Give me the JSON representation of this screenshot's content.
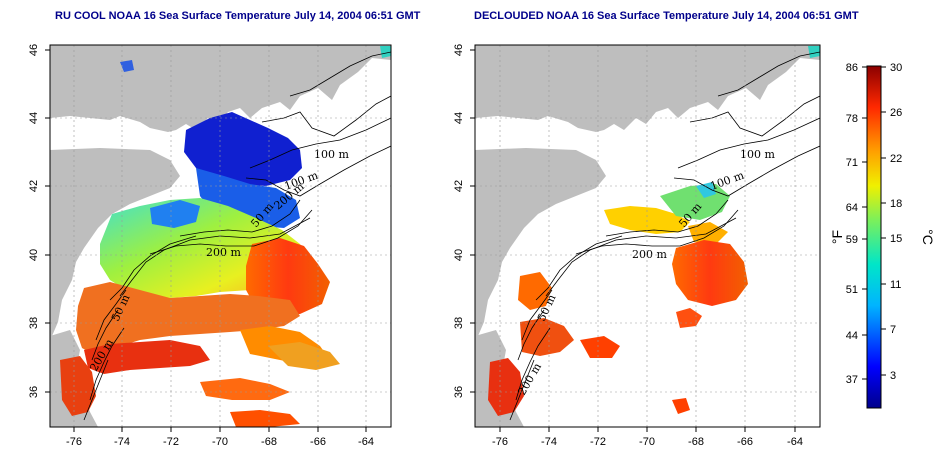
{
  "panels": [
    {
      "title": "RU COOL NOAA 16 Sea Surface Temperature July 14, 2004 06:51 GMT",
      "x_ticks": [
        "-76",
        "-74",
        "-72",
        "-70",
        "-68",
        "-66",
        "-64"
      ],
      "y_ticks": [
        "46",
        "44",
        "42",
        "40",
        "38",
        "36"
      ],
      "contour_labels": [
        "100 m",
        "100 m",
        "200 m",
        "50 m",
        "200 m",
        "50 m",
        "200 m"
      ]
    },
    {
      "title": "DECLOUDED NOAA 16 Sea Surface Temperature July 14, 2004 06:51 GMT",
      "x_ticks": [
        "-76",
        "-74",
        "-72",
        "-70",
        "-68",
        "-66",
        "-64"
      ],
      "y_ticks": [
        "46",
        "44",
        "42",
        "40",
        "38",
        "36"
      ],
      "contour_labels": [
        "100 m",
        "100 m",
        "200 m",
        "50 m",
        "200 m",
        "50 m"
      ]
    }
  ],
  "colorbar": {
    "fahrenheit_ticks": [
      "86",
      "78",
      "71",
      "64",
      "59",
      "51",
      "44",
      "37"
    ],
    "celsius_ticks": [
      "30",
      "26",
      "22",
      "18",
      "15",
      "11",
      "7",
      "3"
    ],
    "fahrenheit_unit": "°F",
    "celsius_unit": "°C"
  },
  "colors": {
    "land": "#bebebe",
    "cold": "#0000c8",
    "warm": "#e82800",
    "title": "#00008b"
  }
}
